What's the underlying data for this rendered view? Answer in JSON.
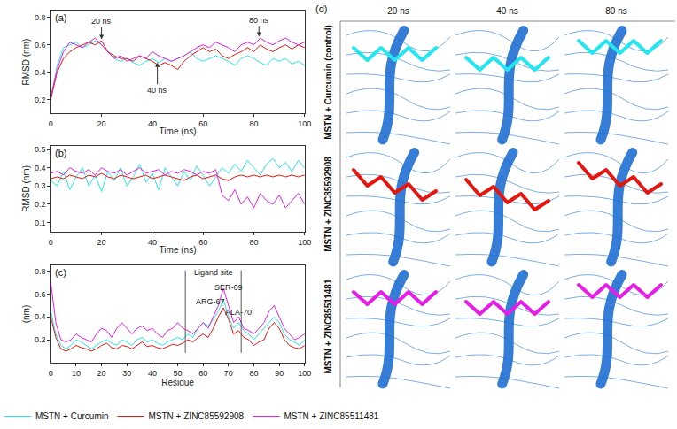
{
  "chart_data": [
    {
      "type": "line",
      "label": "(a)",
      "x_label": "Time (ns)",
      "y_label": "RMSD (nm)",
      "x": [
        0,
        2.5,
        5,
        7.5,
        10,
        12.5,
        15,
        17.5,
        20,
        22.5,
        25,
        27.5,
        30,
        32.5,
        35,
        37.5,
        40,
        42.5,
        45,
        47.5,
        50,
        52.5,
        55,
        57.5,
        60,
        62.5,
        65,
        67.5,
        70,
        72.5,
        75,
        77.5,
        80,
        82.5,
        85,
        87.5,
        90,
        92.5,
        95,
        97.5,
        100
      ],
      "xlim": [
        0,
        100
      ],
      "xticks": [
        0,
        20,
        40,
        60,
        80,
        100
      ],
      "ylim": [
        0.1,
        0.85
      ],
      "yticks": [
        0.2,
        0.4,
        0.6,
        0.8
      ],
      "grid": false,
      "legend": "bottom left",
      "series": [
        {
          "name": "MSTN + Curcumin",
          "color": "#22e6f0",
          "values": [
            0.2,
            0.45,
            0.58,
            0.6,
            0.62,
            0.58,
            0.6,
            0.63,
            0.6,
            0.55,
            0.5,
            0.48,
            0.5,
            0.47,
            0.45,
            0.48,
            0.5,
            0.47,
            0.5,
            0.48,
            0.5,
            0.52,
            0.55,
            0.5,
            0.48,
            0.5,
            0.52,
            0.5,
            0.48,
            0.45,
            0.5,
            0.52,
            0.5,
            0.47,
            0.45,
            0.5,
            0.48,
            0.5,
            0.46,
            0.48,
            0.45
          ]
        },
        {
          "name": "MSTN + ZINC85592908",
          "color": "#e8150f",
          "values": [
            0.2,
            0.4,
            0.5,
            0.55,
            0.58,
            0.6,
            0.62,
            0.6,
            0.63,
            0.55,
            0.52,
            0.5,
            0.5,
            0.48,
            0.52,
            0.5,
            0.48,
            0.45,
            0.47,
            0.45,
            0.42,
            0.48,
            0.52,
            0.55,
            0.58,
            0.55,
            0.57,
            0.52,
            0.5,
            0.53,
            0.55,
            0.58,
            0.55,
            0.6,
            0.57,
            0.55,
            0.58,
            0.6,
            0.57,
            0.6,
            0.58
          ]
        },
        {
          "name": "MSTN + ZINC85511481",
          "color": "#e81ce8",
          "values": [
            0.22,
            0.42,
            0.55,
            0.62,
            0.6,
            0.58,
            0.62,
            0.65,
            0.6,
            0.55,
            0.5,
            0.52,
            0.48,
            0.5,
            0.52,
            0.5,
            0.55,
            0.52,
            0.5,
            0.48,
            0.5,
            0.52,
            0.55,
            0.58,
            0.6,
            0.58,
            0.62,
            0.6,
            0.58,
            0.55,
            0.6,
            0.62,
            0.6,
            0.65,
            0.62,
            0.6,
            0.63,
            0.65,
            0.62,
            0.6,
            0.62
          ]
        }
      ],
      "annotations": [
        {
          "text": "20 ns",
          "x": 20,
          "y": 0.64,
          "ax": 20,
          "ay": 0.77
        },
        {
          "text": "40 ns",
          "x": 42,
          "y": 0.47,
          "ax": 42,
          "ay": 0.27
        },
        {
          "text": "80 ns",
          "x": 82,
          "y": 0.66,
          "ax": 82,
          "ay": 0.78
        }
      ]
    },
    {
      "type": "line",
      "label": "(b)",
      "x_label": "Time (ns)",
      "y_label": "RMSD (nm)",
      "x": [
        0,
        2.5,
        5,
        7.5,
        10,
        12.5,
        15,
        17.5,
        20,
        22.5,
        25,
        27.5,
        30,
        32.5,
        35,
        37.5,
        40,
        42.5,
        45,
        47.5,
        50,
        52.5,
        55,
        57.5,
        60,
        62.5,
        65,
        67.5,
        70,
        72.5,
        75,
        77.5,
        80,
        82.5,
        85,
        87.5,
        90,
        92.5,
        95,
        97.5,
        100
      ],
      "xlim": [
        0,
        100
      ],
      "xticks": [
        0,
        20,
        40,
        60,
        80,
        100
      ],
      "ylim": [
        0.05,
        0.52
      ],
      "yticks": [
        0.1,
        0.2,
        0.3,
        0.4,
        0.5
      ],
      "grid": false,
      "series": [
        {
          "name": "MSTN + Curcumin",
          "color": "#22e6f0",
          "values": [
            0.33,
            0.3,
            0.38,
            0.28,
            0.35,
            0.4,
            0.3,
            0.36,
            0.27,
            0.38,
            0.33,
            0.4,
            0.3,
            0.35,
            0.42,
            0.32,
            0.37,
            0.28,
            0.4,
            0.35,
            0.3,
            0.38,
            0.33,
            0.41,
            0.36,
            0.3,
            0.35,
            0.4,
            0.37,
            0.42,
            0.38,
            0.44,
            0.4,
            0.36,
            0.42,
            0.45,
            0.4,
            0.43,
            0.38,
            0.44,
            0.4
          ]
        },
        {
          "name": "MSTN + ZINC85592908",
          "color": "#e8150f",
          "values": [
            0.34,
            0.35,
            0.34,
            0.36,
            0.35,
            0.34,
            0.36,
            0.35,
            0.37,
            0.35,
            0.34,
            0.36,
            0.35,
            0.34,
            0.35,
            0.36,
            0.34,
            0.35,
            0.36,
            0.35,
            0.34,
            0.33,
            0.35,
            0.36,
            0.34,
            0.35,
            0.36,
            0.34,
            0.33,
            0.35,
            0.36,
            0.35,
            0.36,
            0.35,
            0.36,
            0.35,
            0.36,
            0.35,
            0.36,
            0.35,
            0.36
          ]
        },
        {
          "name": "MSTN + ZINC85511481",
          "color": "#e81ce8",
          "values": [
            0.37,
            0.38,
            0.36,
            0.4,
            0.38,
            0.37,
            0.39,
            0.36,
            0.4,
            0.38,
            0.37,
            0.39,
            0.36,
            0.38,
            0.4,
            0.37,
            0.38,
            0.39,
            0.36,
            0.38,
            0.37,
            0.39,
            0.38,
            0.36,
            0.38,
            0.37,
            0.39,
            0.25,
            0.22,
            0.28,
            0.2,
            0.24,
            0.18,
            0.26,
            0.22,
            0.2,
            0.25,
            0.18,
            0.22,
            0.26,
            0.2
          ]
        }
      ]
    },
    {
      "type": "line",
      "label": "(c)",
      "x_label": "Residue",
      "y_label": "(nm)",
      "x": [
        0,
        2,
        4,
        6,
        8,
        10,
        12,
        14,
        16,
        18,
        20,
        22,
        24,
        26,
        28,
        30,
        32,
        34,
        36,
        38,
        40,
        42,
        44,
        46,
        48,
        50,
        52,
        54,
        56,
        58,
        60,
        62,
        64,
        66,
        68,
        70,
        72,
        74,
        76,
        78,
        80,
        82,
        84,
        86,
        88,
        90,
        92,
        94,
        96,
        98,
        100
      ],
      "xlim": [
        0,
        100
      ],
      "xticks": [
        0,
        10,
        20,
        30,
        40,
        50,
        60,
        70,
        80,
        90,
        100
      ],
      "ylim": [
        0,
        0.85
      ],
      "yticks": [
        0.2,
        0.4,
        0.6,
        0.8
      ],
      "grid": false,
      "series": [
        {
          "name": "MSTN + Curcumin",
          "color": "#22e6f0",
          "values": [
            0.45,
            0.25,
            0.15,
            0.12,
            0.15,
            0.2,
            0.18,
            0.15,
            0.12,
            0.15,
            0.18,
            0.2,
            0.17,
            0.15,
            0.2,
            0.18,
            0.15,
            0.2,
            0.22,
            0.18,
            0.2,
            0.17,
            0.15,
            0.18,
            0.2,
            0.22,
            0.2,
            0.25,
            0.22,
            0.3,
            0.35,
            0.32,
            0.38,
            0.45,
            0.55,
            0.4,
            0.3,
            0.35,
            0.28,
            0.25,
            0.2,
            0.25,
            0.3,
            0.35,
            0.4,
            0.35,
            0.25,
            0.2,
            0.18,
            0.15,
            0.2
          ]
        },
        {
          "name": "MSTN + ZINC85592908",
          "color": "#e8150f",
          "values": [
            0.4,
            0.22,
            0.12,
            0.1,
            0.12,
            0.15,
            0.13,
            0.12,
            0.1,
            0.12,
            0.15,
            0.17,
            0.13,
            0.12,
            0.15,
            0.14,
            0.12,
            0.15,
            0.18,
            0.14,
            0.15,
            0.13,
            0.12,
            0.14,
            0.16,
            0.15,
            0.17,
            0.2,
            0.18,
            0.22,
            0.25,
            0.22,
            0.3,
            0.4,
            0.48,
            0.38,
            0.25,
            0.28,
            0.22,
            0.2,
            0.15,
            0.18,
            0.2,
            0.3,
            0.35,
            0.3,
            0.2,
            0.15,
            0.13,
            0.12,
            0.15
          ]
        },
        {
          "name": "MSTN + ZINC85511481",
          "color": "#e81ce8",
          "values": [
            0.7,
            0.35,
            0.2,
            0.18,
            0.2,
            0.25,
            0.22,
            0.2,
            0.18,
            0.25,
            0.3,
            0.28,
            0.22,
            0.3,
            0.35,
            0.3,
            0.25,
            0.3,
            0.32,
            0.28,
            0.3,
            0.25,
            0.22,
            0.28,
            0.3,
            0.35,
            0.3,
            0.28,
            0.25,
            0.3,
            0.35,
            0.3,
            0.4,
            0.5,
            0.65,
            0.5,
            0.35,
            0.4,
            0.3,
            0.28,
            0.25,
            0.3,
            0.35,
            0.45,
            0.5,
            0.4,
            0.3,
            0.25,
            0.2,
            0.22,
            0.25
          ]
        }
      ],
      "vlines": [
        53,
        75
      ],
      "annotations": [
        {
          "text": "Ligand site",
          "x": 64,
          "y": 0.79
        },
        {
          "text": "SER-69",
          "x": 70,
          "y": 0.66
        },
        {
          "text": "ARG-67",
          "x": 63,
          "y": 0.53
        },
        {
          "text": "ALA-70",
          "x": 74,
          "y": 0.44
        }
      ]
    }
  ],
  "panel_d": {
    "label": "(d)",
    "columns": [
      "20 ns",
      "40 ns",
      "80 ns"
    ],
    "rows": [
      "MSTN + Curcumin (control)",
      "MSTN + ZINC85592908",
      "MSTN + ZINC85511481"
    ]
  }
}
